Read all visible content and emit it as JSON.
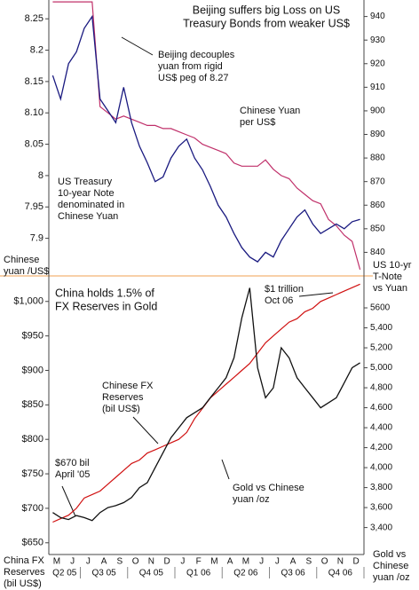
{
  "chart_data": [
    {
      "type": "line",
      "title": [
        "Beijing suffers big Loss on US",
        "Treasury Bonds from weaker US$"
      ],
      "ylabel": [
        "Chinese",
        "yuan /US$"
      ],
      "y2label": [
        "US 10-yr",
        "T-Note",
        "vs Yuan"
      ],
      "annotations": [
        [
          "Beijing decouples",
          "yuan from rigid",
          "US$ peg of 8.27"
        ],
        [
          "Chinese Yuan",
          "per US$"
        ],
        [
          "US Treasury",
          "10-year Note",
          "denominated in",
          "Chinese Yuan"
        ]
      ],
      "ylim": [
        7.84,
        8.28
      ],
      "yticks": [
        7.9,
        7.95,
        8,
        8.05,
        {
          "value": 8.1,
          "label": "8.10"
        },
        8.15,
        8.2,
        8.25
      ],
      "y2lim": [
        830,
        947
      ],
      "y2ticks": [
        840,
        850,
        860,
        870,
        880,
        890,
        900,
        910,
        920,
        930,
        940
      ],
      "series": [
        {
          "name": "Chinese Yuan per US$",
          "color": "#c0306a",
          "values": [
            8.277,
            8.277,
            8.277,
            8.277,
            8.277,
            8.277,
            8.11,
            8.1,
            8.09,
            8.095,
            8.09,
            8.085,
            8.08,
            8.08,
            8.075,
            8.075,
            8.07,
            8.065,
            8.06,
            8.05,
            8.045,
            8.04,
            8.035,
            8.02,
            8.015,
            8.015,
            8.015,
            8.025,
            8.01,
            8.0,
            7.995,
            7.98,
            7.97,
            7.96,
            7.955,
            7.93,
            7.92,
            7.905,
            7.895,
            7.85
          ]
        },
        {
          "name": "US Treasury 10-year Note denominated in Chinese Yuan",
          "color": "#1a1a80",
          "axis": "y2",
          "values": [
            915,
            905,
            920,
            925,
            935,
            940,
            905,
            900,
            895,
            910,
            895,
            885,
            878,
            870,
            872,
            880,
            885,
            888,
            880,
            875,
            868,
            860,
            855,
            848,
            842,
            838,
            836,
            840,
            838,
            845,
            850,
            855,
            858,
            852,
            848,
            850,
            852,
            850,
            853,
            854
          ]
        }
      ]
    },
    {
      "type": "line",
      "title": [
        "China holds 1.5% of",
        "FX Reserves in Gold"
      ],
      "ylabel": [
        "China FX",
        "Reserves",
        "(bil US$)"
      ],
      "y2label": [
        "Gold vs",
        "Chinese",
        "yuan /oz"
      ],
      "annotations": [
        [
          "$1 trillion",
          "Oct 06"
        ],
        [
          "Chinese FX",
          "Reserves",
          "(bil US$)"
        ],
        [
          "$670 bil",
          "April '05"
        ],
        [
          "Gold vs Chinese",
          "yuan  /oz"
        ]
      ],
      "categories": [
        "M",
        null,
        "J",
        null,
        "J",
        null,
        "A",
        null,
        "S",
        null,
        "O",
        null,
        "N",
        null,
        "D",
        null,
        "J",
        null,
        "F",
        null,
        "M",
        null,
        "A",
        null,
        "M",
        null,
        "J",
        null,
        "J",
        null,
        "A",
        null,
        "S",
        null,
        "O",
        null,
        "N",
        null,
        "D",
        null
      ],
      "quarters": [
        "Q2 05",
        "Q3 05",
        "Q4 05",
        "Q1 06",
        "Q2 06",
        "Q3 06",
        "Q4 06"
      ],
      "ylim": [
        633,
        1037
      ],
      "yticks": [
        {
          "value": 650,
          "label": "$650"
        },
        {
          "value": 700,
          "label": "$700"
        },
        {
          "value": 750,
          "label": "$750"
        },
        {
          "value": 800,
          "label": "$800"
        },
        {
          "value": 850,
          "label": "$850"
        },
        {
          "value": 900,
          "label": "$900"
        },
        {
          "value": 950,
          "label": "$950"
        },
        {
          "value": 1000,
          "label": "$1,000"
        }
      ],
      "y2lim": [
        3130,
        5920
      ],
      "y2ticks": [
        {
          "value": 3400,
          "label": "3,400"
        },
        {
          "value": 3600,
          "label": "3,600"
        },
        {
          "value": 3800,
          "label": "3,800"
        },
        {
          "value": 4000,
          "label": "4,000"
        },
        {
          "value": 4200,
          "label": "4,200"
        },
        {
          "value": 4400,
          "label": "4,400"
        },
        {
          "value": 4600,
          "label": "4,600"
        },
        {
          "value": 4800,
          "label": "4,800"
        },
        {
          "value": 5000,
          "label": "5,000"
        },
        {
          "value": 5200,
          "label": "5,200"
        },
        {
          "value": 5400,
          "label": "5,400"
        },
        5600
      ],
      "series": [
        {
          "name": "Chinese FX Reserves (bil US$)",
          "color": "#d01010",
          "values": [
            680,
            685,
            690,
            700,
            715,
            720,
            725,
            735,
            745,
            755,
            765,
            770,
            780,
            785,
            790,
            795,
            800,
            810,
            830,
            845,
            860,
            870,
            880,
            890,
            900,
            910,
            925,
            940,
            950,
            960,
            970,
            975,
            985,
            990,
            1000,
            1005,
            1010,
            1015,
            1020,
            1025
          ]
        },
        {
          "name": "Gold vs Chinese yuan /oz",
          "color": "#111111",
          "axis": "y2",
          "values": [
            3550,
            3500,
            3480,
            3520,
            3500,
            3470,
            3550,
            3600,
            3620,
            3650,
            3700,
            3800,
            3850,
            4000,
            4150,
            4300,
            4400,
            4500,
            4550,
            4600,
            4700,
            4800,
            4900,
            5100,
            5500,
            5800,
            5000,
            4700,
            4800,
            5200,
            5100,
            4900,
            4800,
            4700,
            4600,
            4650,
            4700,
            4850,
            5000,
            5050
          ]
        }
      ]
    }
  ]
}
